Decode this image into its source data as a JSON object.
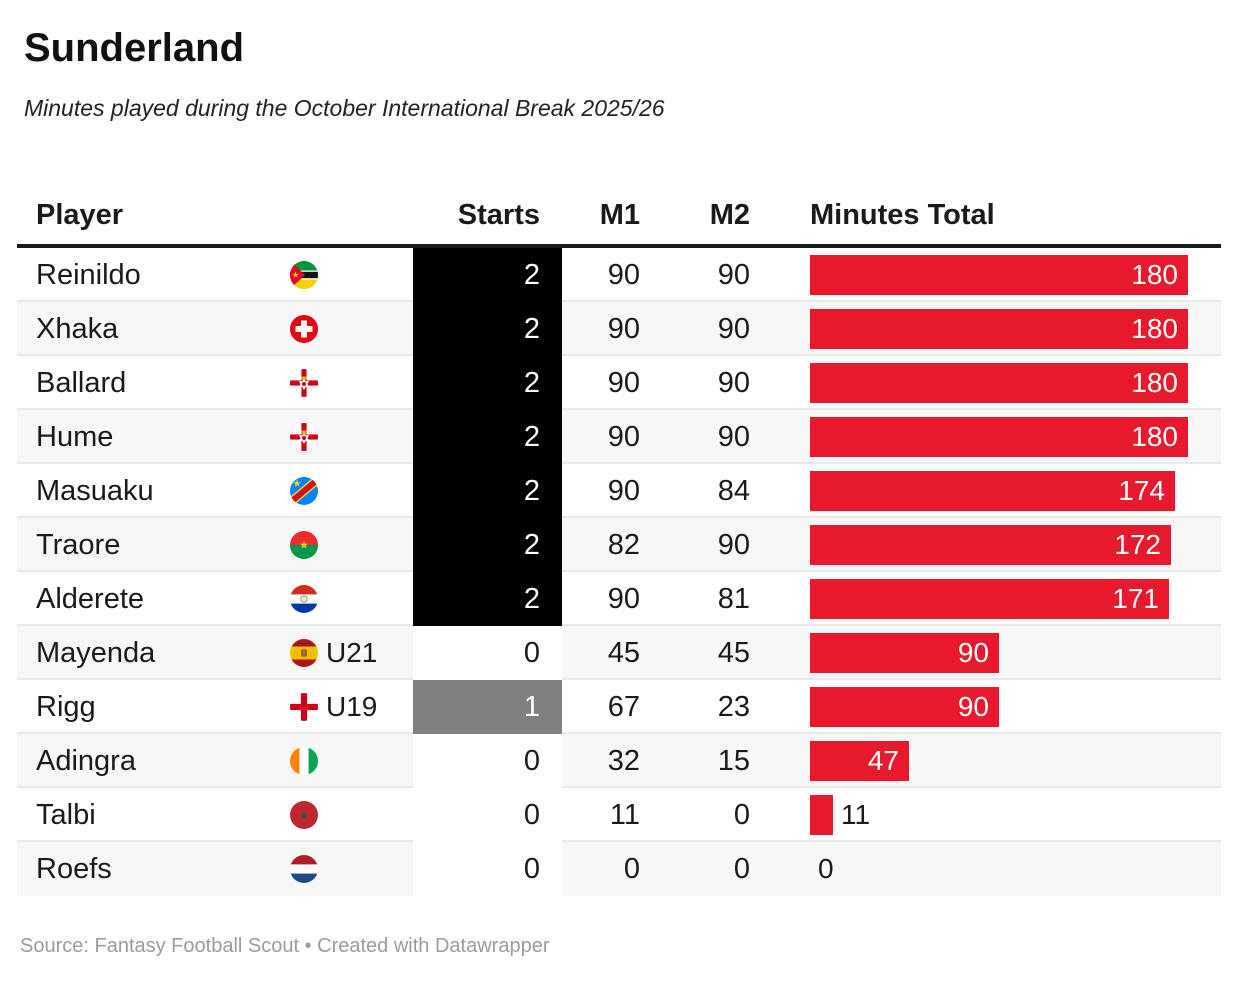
{
  "title": "Sunderland",
  "subtitle": "Minutes played during the October International Break 2025/26",
  "columns": {
    "player": "Player",
    "starts": "Starts",
    "m1": "M1",
    "m2": "M2",
    "total": "Minutes Total"
  },
  "colors": {
    "bar": "#e9192d",
    "starts_2": "#000000",
    "starts_1": "#808080",
    "starts_0": "#ffffff",
    "text_on_dark": "#ffffff",
    "text": "#1a1a1a"
  },
  "chart_data": {
    "type": "table",
    "title": "Sunderland",
    "subtitle": "Minutes played during the October International Break 2025/26",
    "columns": [
      "Player",
      "Starts",
      "M1",
      "M2",
      "Minutes Total"
    ],
    "bar_column": "Minutes Total",
    "max_minutes": 180,
    "rows": [
      {
        "player": "Reinildo",
        "flag": "mozambique",
        "age_label": "",
        "starts": 2,
        "m1": 90,
        "m2": 90,
        "minutes_total": 180
      },
      {
        "player": "Xhaka",
        "flag": "switzerland",
        "age_label": "",
        "starts": 2,
        "m1": 90,
        "m2": 90,
        "minutes_total": 180
      },
      {
        "player": "Ballard",
        "flag": "northern-ireland",
        "age_label": "",
        "starts": 2,
        "m1": 90,
        "m2": 90,
        "minutes_total": 180
      },
      {
        "player": "Hume",
        "flag": "northern-ireland",
        "age_label": "",
        "starts": 2,
        "m1": 90,
        "m2": 90,
        "minutes_total": 180
      },
      {
        "player": "Masuaku",
        "flag": "dr-congo",
        "age_label": "",
        "starts": 2,
        "m1": 90,
        "m2": 84,
        "minutes_total": 174
      },
      {
        "player": "Traore",
        "flag": "burkina-faso",
        "age_label": "",
        "starts": 2,
        "m1": 82,
        "m2": 90,
        "minutes_total": 172
      },
      {
        "player": "Alderete",
        "flag": "paraguay",
        "age_label": "",
        "starts": 2,
        "m1": 90,
        "m2": 81,
        "minutes_total": 171
      },
      {
        "player": "Mayenda",
        "flag": "spain",
        "age_label": "U21",
        "starts": 0,
        "m1": 45,
        "m2": 45,
        "minutes_total": 90
      },
      {
        "player": "Rigg",
        "flag": "england",
        "age_label": "U19",
        "starts": 1,
        "m1": 67,
        "m2": 23,
        "minutes_total": 90
      },
      {
        "player": "Adingra",
        "flag": "ivory-coast",
        "age_label": "",
        "starts": 0,
        "m1": 32,
        "m2": 15,
        "minutes_total": 47
      },
      {
        "player": "Talbi",
        "flag": "morocco",
        "age_label": "",
        "starts": 0,
        "m1": 11,
        "m2": 0,
        "minutes_total": 11
      },
      {
        "player": "Roefs",
        "flag": "netherlands",
        "age_label": "",
        "starts": 0,
        "m1": 0,
        "m2": 0,
        "minutes_total": 0
      }
    ]
  },
  "footer": {
    "source": "Source: Fantasy Football Scout • Created with Datawrapper"
  }
}
